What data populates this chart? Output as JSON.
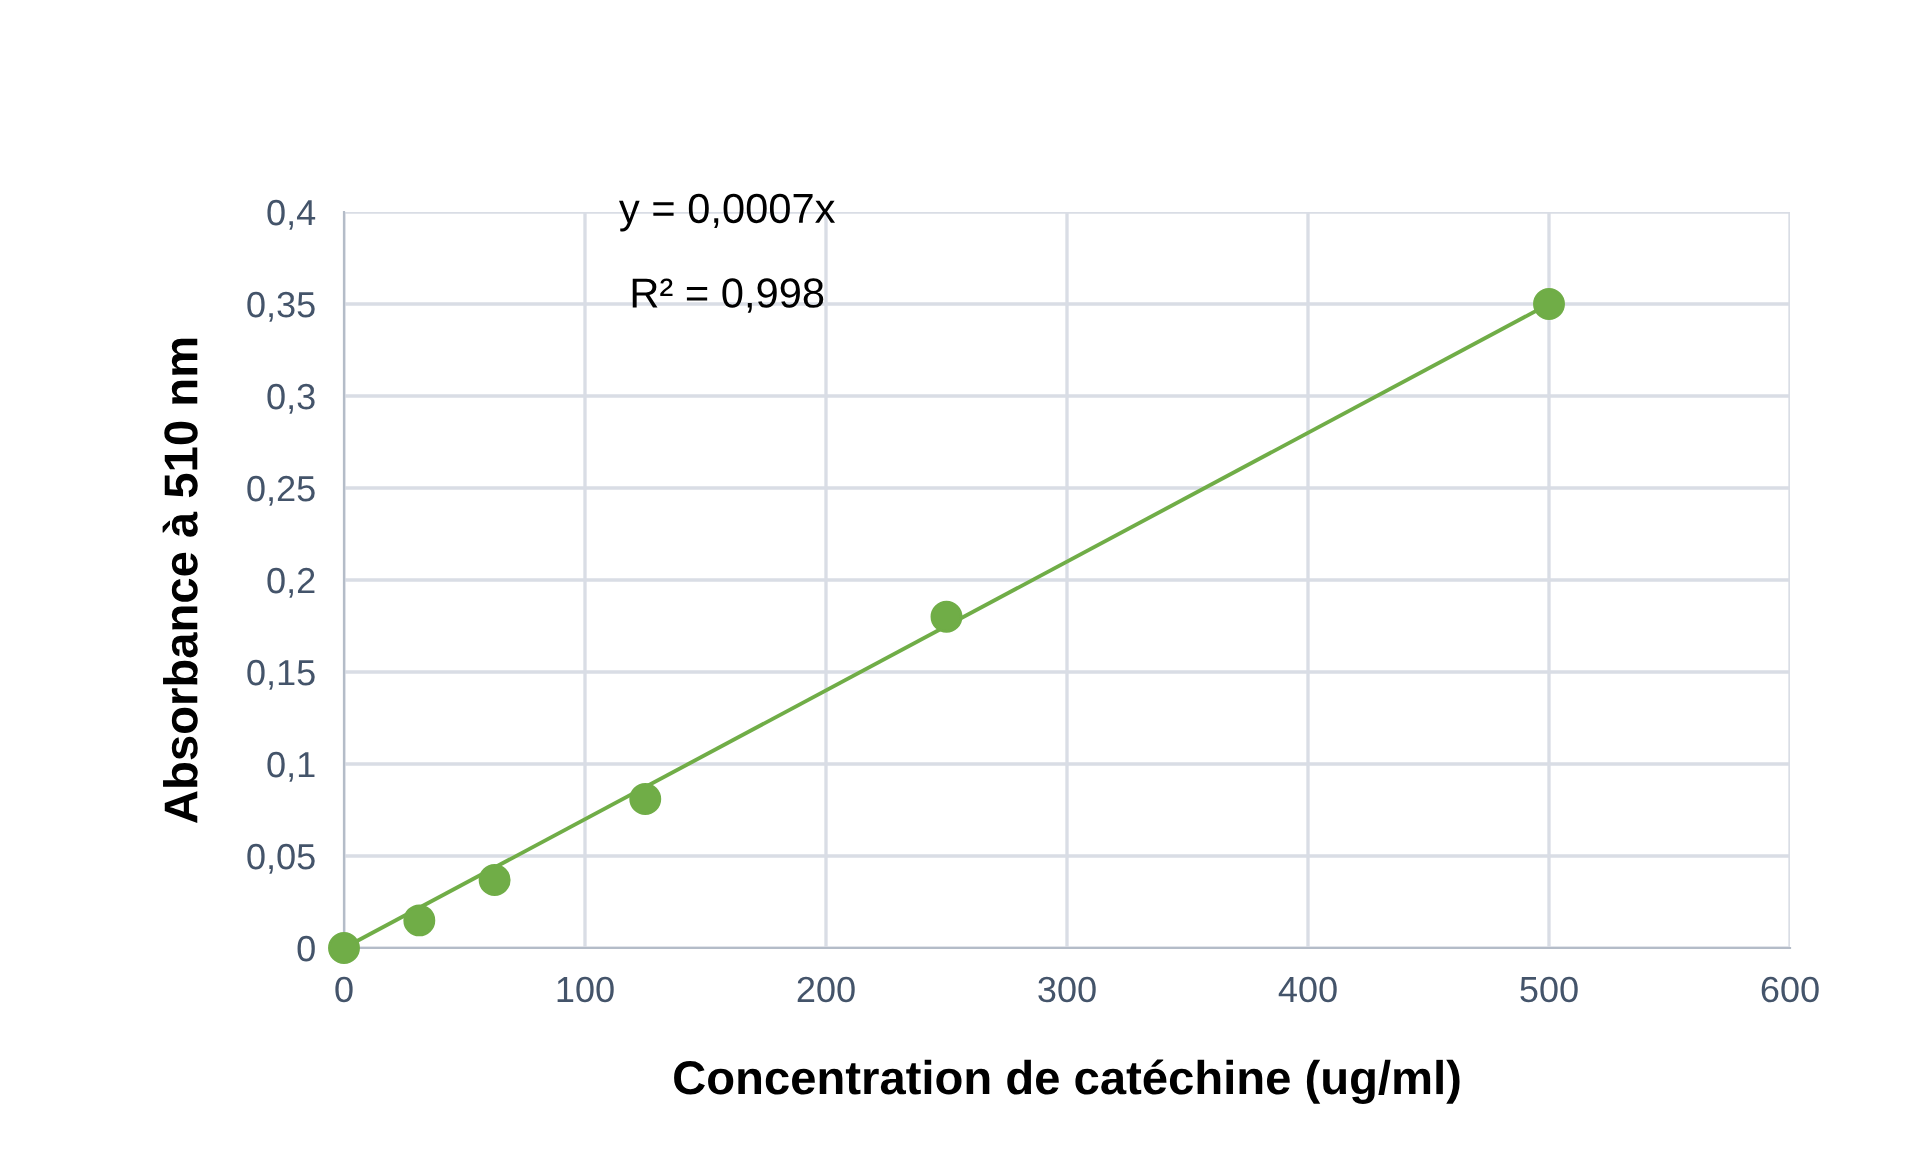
{
  "chart_data": {
    "type": "scatter",
    "xlabel": "Concentration de catéchine (ug/ml)",
    "ylabel": "Absorbance à 510 nm",
    "series": [
      {
        "color": "#70ad47",
        "x": [
          0,
          31.25,
          62.5,
          125,
          250,
          500
        ],
        "values": [
          0,
          0.015,
          0.037,
          0.081,
          0.18,
          0.35
        ],
        "marker": "circle"
      },
      {
        "type": "line",
        "color": "#70ad47",
        "x": [
          0,
          500
        ],
        "values": [
          0,
          0.35
        ],
        "line_style": "solid"
      }
    ],
    "annotations": [
      "y = 0,0007x",
      "R² = 0,998"
    ],
    "xlim": [
      0,
      600
    ],
    "xticks": [
      0,
      100,
      200,
      300,
      400,
      500,
      600
    ],
    "ylim": [
      0,
      0.4
    ],
    "yticks": [
      0,
      {
        "value": 0.05,
        "label": "0,05"
      },
      {
        "value": 0.1,
        "label": "0,1"
      },
      {
        "value": 0.15,
        "label": "0,15"
      },
      {
        "value": 0.2,
        "label": "0,2"
      },
      {
        "value": 0.25,
        "label": "0,25"
      },
      {
        "value": 0.3,
        "label": "0,3"
      },
      {
        "value": 0.35,
        "label": "0,35"
      },
      {
        "value": 0.4,
        "label": "0,4"
      }
    ],
    "grid": true
  }
}
